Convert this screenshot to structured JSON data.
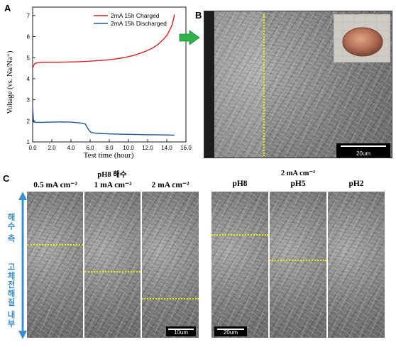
{
  "panels": {
    "a": {
      "label": "A"
    },
    "b": {
      "label": "B"
    },
    "c": {
      "label": "C"
    }
  },
  "chart_data": {
    "type": "line",
    "xlabel": "Test time (hour)",
    "ylabel": "Voltage (vs. Na/Na⁺)",
    "xlim": [
      0,
      16
    ],
    "ylim": [
      1,
      7.4
    ],
    "xticks": [
      "0.0",
      "2.0",
      "4.0",
      "6.0",
      "8.0",
      "10.0",
      "12.0",
      "14.0",
      "16.0"
    ],
    "yticks": [
      "1",
      "2",
      "3",
      "4",
      "5",
      "6",
      "7"
    ],
    "legend_position": "top-right",
    "series": [
      {
        "name": "2mA 15h Charged",
        "color": "#e02020",
        "x": [
          0,
          0.08,
          0.2,
          0.4,
          0.8,
          1.5,
          2.5,
          3.5,
          4.5,
          5.5,
          6.5,
          7.5,
          8.5,
          9.5,
          10.5,
          11.5,
          12.0,
          12.5,
          13.0,
          13.5,
          14.0,
          14.3,
          14.6,
          14.8
        ],
        "y": [
          4.5,
          4.6,
          4.7,
          4.75,
          4.77,
          4.78,
          4.78,
          4.79,
          4.8,
          4.82,
          4.85,
          4.88,
          4.93,
          5.0,
          5.1,
          5.25,
          5.35,
          5.45,
          5.6,
          5.8,
          6.05,
          6.3,
          6.6,
          7.05
        ]
      },
      {
        "name": "2mA 15h Discharged",
        "color": "#1f55a5",
        "x": [
          0,
          0.1,
          0.3,
          1,
          2,
          3,
          4,
          5,
          5.5,
          5.8,
          6.1,
          6.5,
          7,
          8,
          9,
          10,
          11,
          12,
          13,
          14,
          14.8
        ],
        "y": [
          2.6,
          1.95,
          1.93,
          1.93,
          1.94,
          1.95,
          1.94,
          1.9,
          1.85,
          1.6,
          1.45,
          1.42,
          1.4,
          1.38,
          1.37,
          1.36,
          1.35,
          1.34,
          1.34,
          1.33,
          1.32
        ]
      }
    ]
  },
  "panel_b": {
    "scale_bar": "20um"
  },
  "panel_c": {
    "left_group_title": "pH8 해수",
    "left_cols": [
      "0.5 mA cm⁻²",
      "1 mA cm⁻²",
      "2 mA cm⁻²"
    ],
    "right_group_title": "2 mA cm⁻²",
    "right_cols": [
      "pH8",
      "pH5",
      "pH2"
    ],
    "left_scale_bar": "10um",
    "right_scale_bar": "20um",
    "side_top_label": "해수 측",
    "side_bottom_label": "고체전해질 내부"
  }
}
